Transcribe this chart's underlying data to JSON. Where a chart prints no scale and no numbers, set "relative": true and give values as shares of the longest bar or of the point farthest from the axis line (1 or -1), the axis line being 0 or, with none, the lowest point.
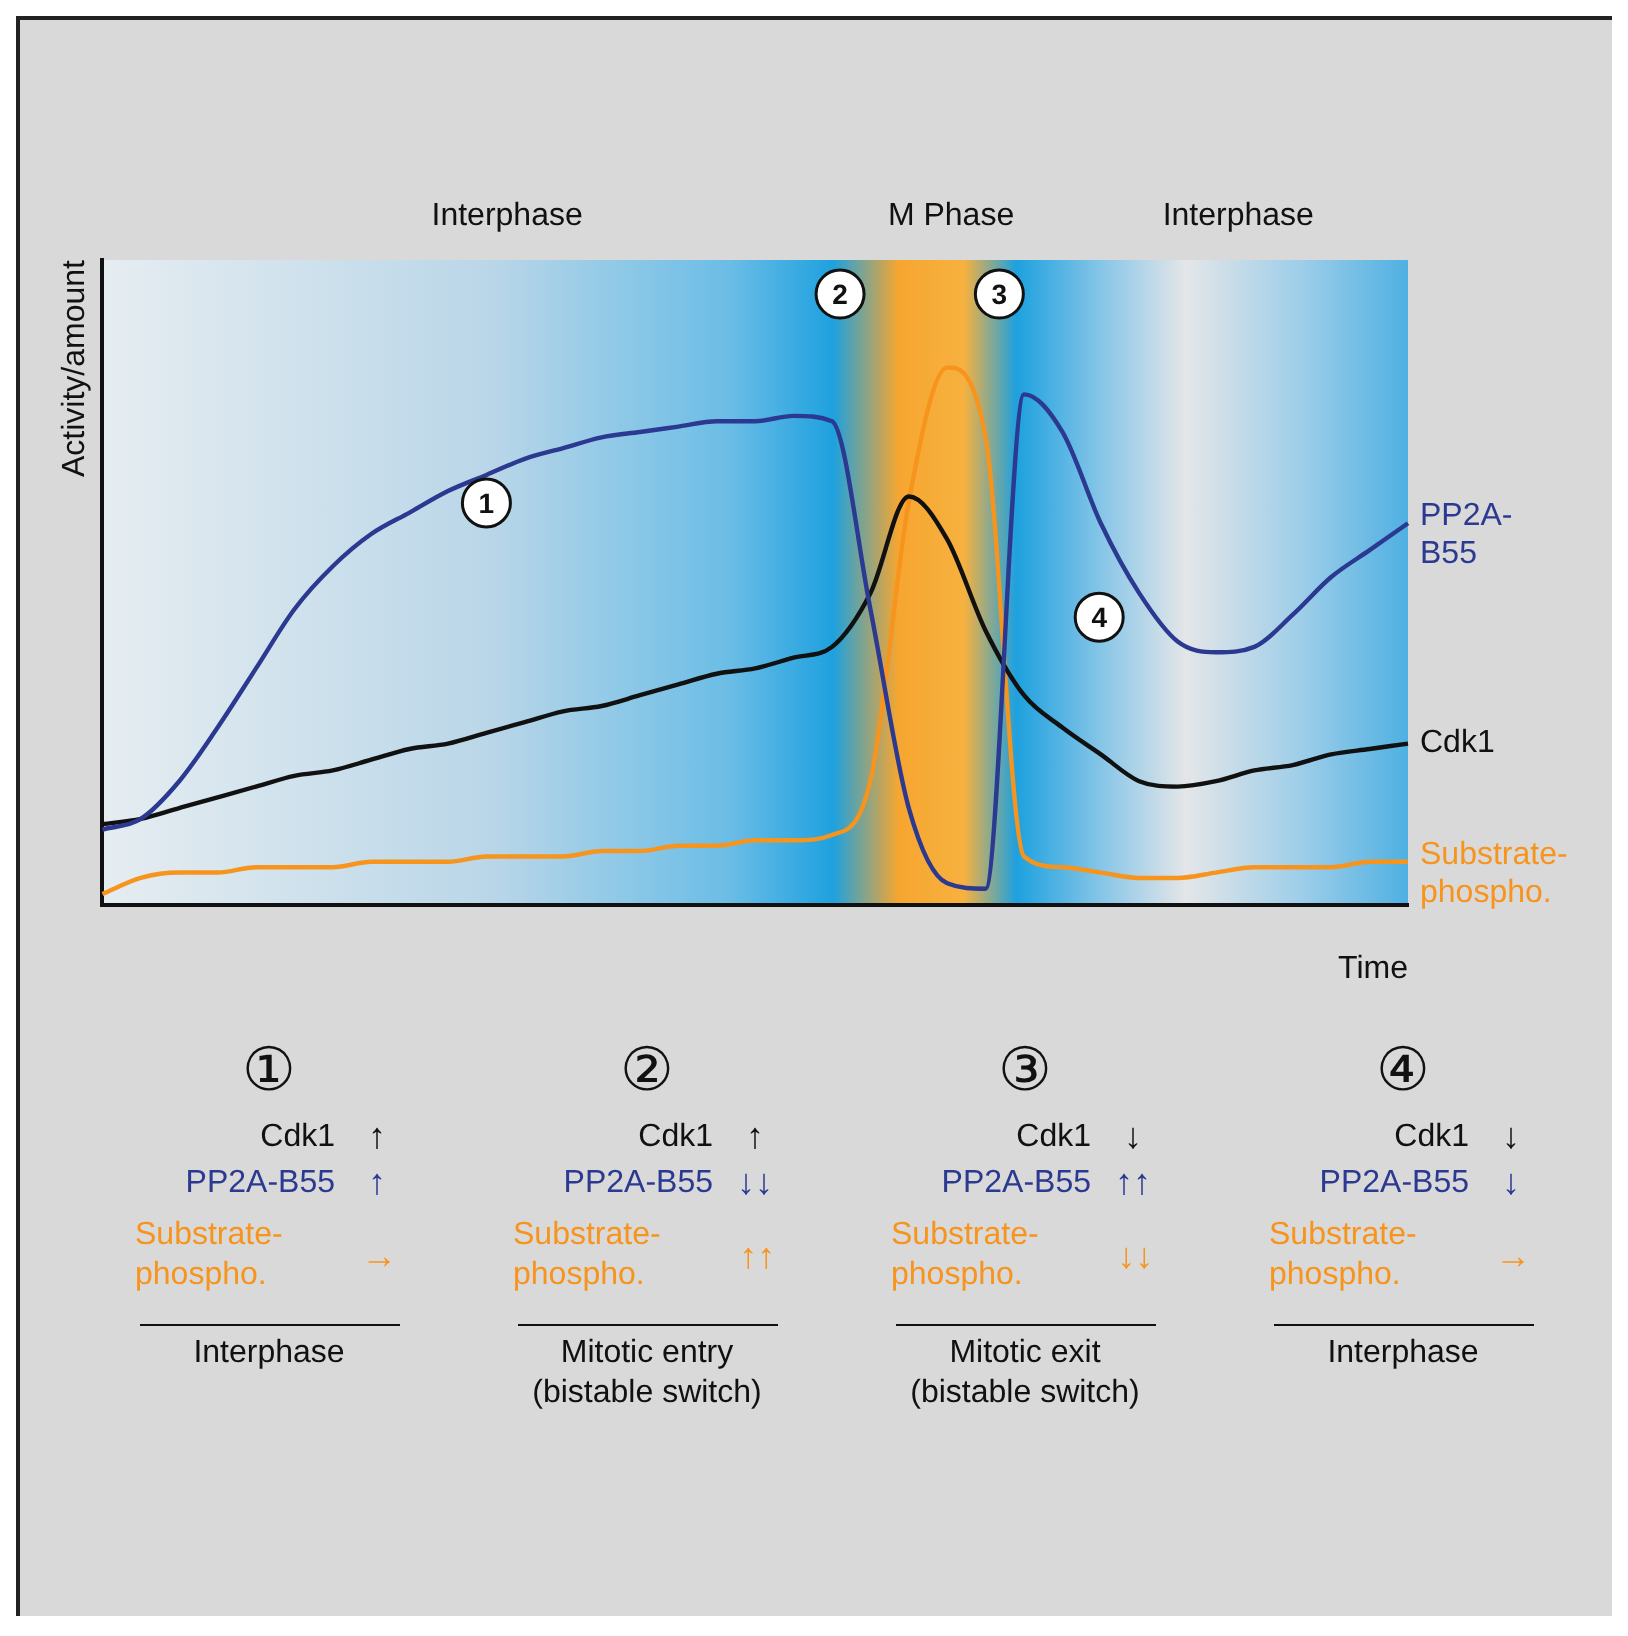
{
  "chart_data": [
    {
      "type": "line",
      "relative": true,
      "xlabel": "Time",
      "ylabel": "Activity/amount",
      "legend": false,
      "grid": false,
      "marker": "none",
      "line_style": "solid",
      "categories": [
        null,
        null,
        null,
        null,
        null,
        null,
        null,
        null,
        null,
        null,
        null,
        null,
        null,
        null,
        null,
        null,
        null,
        null,
        null,
        null,
        null,
        null,
        null,
        null,
        null,
        null,
        null,
        null,
        null,
        null,
        null,
        null,
        null,
        null,
        null
      ],
      "annotations": [
        "Interphase",
        "M Phase",
        "Interphase",
        "1",
        "2",
        "3",
        "4"
      ],
      "series": [
        {
          "name": "PP2A-B55",
          "color": "#2b3990",
          "values": [
            0.14,
            0.16,
            0.23,
            0.33,
            0.44,
            0.55,
            0.63,
            0.69,
            0.73,
            0.77,
            0.8,
            0.83,
            0.85,
            0.87,
            0.88,
            0.89,
            0.9,
            0.9,
            0.91,
            0.9,
            0.55,
            0.18,
            0.04,
            0.03,
            0.95,
            0.88,
            0.71,
            0.58,
            0.49,
            0.47,
            0.48,
            0.54,
            0.61,
            0.66,
            0.71
          ]
        },
        {
          "name": "Cdk1",
          "color": "#111111",
          "values": [
            0.15,
            0.16,
            0.18,
            0.2,
            0.22,
            0.24,
            0.25,
            0.27,
            0.29,
            0.3,
            0.32,
            0.34,
            0.36,
            0.37,
            0.39,
            0.41,
            0.43,
            0.44,
            0.46,
            0.48,
            0.58,
            0.76,
            0.68,
            0.51,
            0.39,
            0.33,
            0.28,
            0.23,
            0.22,
            0.23,
            0.25,
            0.26,
            0.28,
            0.29,
            0.3
          ]
        },
        {
          "name": "Substrate-phospho.",
          "color": "#f7941d",
          "values": [
            0.02,
            0.05,
            0.06,
            0.06,
            0.07,
            0.07,
            0.07,
            0.08,
            0.08,
            0.08,
            0.09,
            0.09,
            0.09,
            0.1,
            0.1,
            0.11,
            0.11,
            0.12,
            0.12,
            0.13,
            0.23,
            0.75,
            1,
            0.87,
            0.09,
            0.07,
            0.06,
            0.05,
            0.05,
            0.06,
            0.07,
            0.07,
            0.07,
            0.08,
            0.08
          ]
        }
      ]
    },
    {
      "type": "other",
      "annotations": [
        "①",
        "Cdk1",
        "↑",
        "PP2A-B55",
        "↑",
        "Substrate-phospho.",
        "→",
        "Interphase",
        "②",
        "Cdk1",
        "↑",
        "PP2A-B55",
        "↓↓",
        "Substrate-phospho.",
        "↑↑",
        "Mitotic entry (bistable switch)",
        "③",
        "Cdk1",
        "↓",
        "PP2A-B55",
        "↑↑",
        "Substrate-phospho.",
        "↓↓",
        "Mitotic exit (bistable switch)",
        "④",
        "Cdk1",
        "↓",
        "PP2A-B55",
        "↓",
        "Substrate-phospho.",
        "→",
        "Interphase"
      ]
    }
  ]
}
